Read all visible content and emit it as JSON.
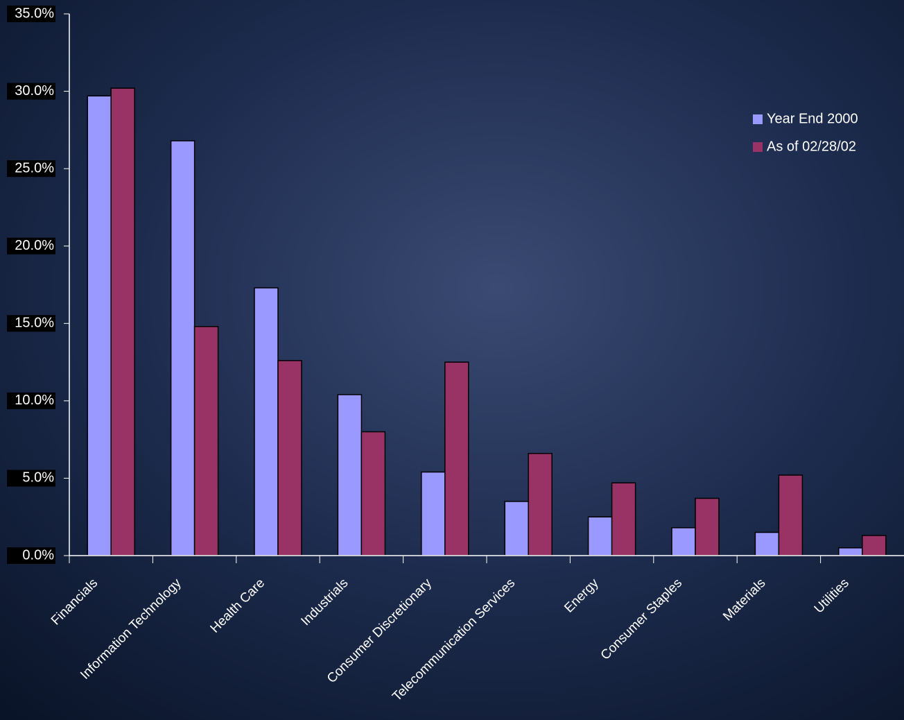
{
  "chart_data": {
    "type": "bar",
    "categories": [
      "Financials",
      "Information Technology",
      "Health Care",
      "Industrials",
      "Consumer Discretionary",
      "Telecommunication Services",
      "Energy",
      "Consumer Staples",
      "Materials",
      "Utilities"
    ],
    "series": [
      {
        "name": "Year End 2000",
        "color": "#9999ff",
        "values": [
          29.7,
          26.8,
          17.3,
          10.4,
          5.4,
          3.5,
          2.5,
          1.8,
          1.5,
          0.5
        ]
      },
      {
        "name": "As of 02/28/02",
        "color": "#993366",
        "values": [
          30.2,
          14.8,
          12.6,
          8.0,
          12.5,
          6.6,
          4.7,
          3.7,
          5.2,
          1.3
        ]
      }
    ],
    "ylim": [
      0,
      35
    ],
    "yticks": [
      {
        "value": 0,
        "label": "0.0%"
      },
      {
        "value": 5,
        "label": "5.0%"
      },
      {
        "value": 10,
        "label": "10.0%"
      },
      {
        "value": 15,
        "label": "15.0%"
      },
      {
        "value": 20,
        "label": "20.0%"
      },
      {
        "value": 25,
        "label": "25.0%"
      },
      {
        "value": 30,
        "label": "30.0%"
      },
      {
        "value": 35,
        "label": "35.0%"
      }
    ]
  }
}
